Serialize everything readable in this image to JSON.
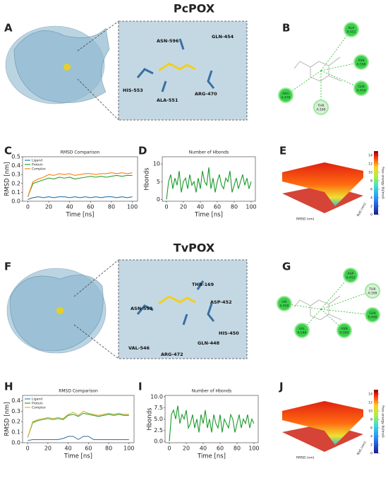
{
  "sections": [
    {
      "title": "PcPOX"
    },
    {
      "title": "TvPOX"
    }
  ],
  "panels": {
    "A": {
      "label": "A",
      "residues": [
        "ASN-596",
        "GLN-454",
        "HIS-553",
        "ALA-551",
        "ARG-470"
      ]
    },
    "B": {
      "label": "B",
      "residues": [
        {
          "name": "ALA",
          "id": "A:551"
        },
        {
          "name": "ASN",
          "id": "A:596"
        },
        {
          "name": "GLN",
          "id": "A:454"
        },
        {
          "name": "ARG",
          "id": "A:470"
        },
        {
          "name": "THR",
          "id": "A:160"
        }
      ]
    },
    "C": {
      "label": "C"
    },
    "D": {
      "label": "D"
    },
    "E": {
      "label": "E",
      "x_label": "RMSD (nm)",
      "y_label": "RoG (nm)",
      "colorbar": {
        "label": "Free energy (kJ/mol)",
        "lim": [
          0,
          15
        ],
        "ticks": [
          0,
          2,
          4,
          6,
          8,
          10,
          12,
          14
        ]
      }
    },
    "F": {
      "label": "F",
      "residues": [
        "THR-169",
        "ASN-593",
        "ASP-452",
        "HIS-450",
        "GLN-448",
        "VAL-546",
        "ARG-472"
      ]
    },
    "G": {
      "label": "G",
      "residues": [
        {
          "name": "ASP",
          "id": "A:452"
        },
        {
          "name": "THR",
          "id": "A:169"
        },
        {
          "name": "GLN",
          "id": "A:448"
        },
        {
          "name": "HIS",
          "id": "A:450"
        },
        {
          "name": "VAL",
          "id": "A:546"
        },
        {
          "name": "ASN",
          "id": "A:593"
        }
      ]
    },
    "H": {
      "label": "H"
    },
    "I": {
      "label": "I"
    },
    "J": {
      "label": "J",
      "x_label": "RMSD (nm)",
      "y_label": "RoG (nm)",
      "colorbar": {
        "label": "Free energy (kJ/mol)",
        "lim": [
          0,
          15
        ],
        "ticks": [
          0,
          2,
          4,
          6,
          8,
          10,
          12,
          14
        ]
      }
    }
  },
  "chart_data": [
    {
      "type": "line",
      "title": "RMSD Comparison",
      "x_label": "Time [ns]",
      "y_label": "RMSD [nm]",
      "x": [
        0,
        5,
        10,
        15,
        20,
        25,
        30,
        35,
        40,
        45,
        50,
        55,
        60,
        65,
        70,
        75,
        80,
        85,
        90,
        95,
        100
      ],
      "xlim": [
        -5,
        105
      ],
      "xticks": [
        0,
        20,
        40,
        60,
        80,
        100
      ],
      "ylim": [
        0,
        0.5
      ],
      "yticks": [
        {
          "value": 0,
          "label": "0.0"
        },
        0.1,
        0.2,
        0.3,
        0.4,
        0.5
      ],
      "series": [
        {
          "name": "Ligand",
          "color": "#1f77b4",
          "values": [
            0.02,
            0.04,
            0.05,
            0.04,
            0.05,
            0.04,
            0.05,
            0.05,
            0.04,
            0.05,
            0.04,
            0.05,
            0.04,
            0.05,
            0.04,
            0.05,
            0.05,
            0.04,
            0.05,
            0.04,
            0.05
          ]
        },
        {
          "name": "Protein",
          "color": "#2ca02c",
          "values": [
            0.05,
            0.2,
            0.22,
            0.24,
            0.26,
            0.25,
            0.27,
            0.26,
            0.27,
            0.25,
            0.26,
            0.27,
            0.28,
            0.27,
            0.28,
            0.27,
            0.28,
            0.29,
            0.28,
            0.29,
            0.29
          ]
        },
        {
          "name": "Complex",
          "color": "#ff7f0e",
          "values": [
            0.05,
            0.22,
            0.25,
            0.27,
            0.3,
            0.29,
            0.31,
            0.3,
            0.31,
            0.29,
            0.3,
            0.31,
            0.31,
            0.3,
            0.31,
            0.31,
            0.32,
            0.31,
            0.32,
            0.31,
            0.32
          ]
        }
      ]
    },
    {
      "type": "line",
      "title": "Number of Hbonds",
      "x_label": "Time [ns]",
      "y_label": "Hbonds",
      "x": [
        0,
        2.5,
        5,
        7.5,
        10,
        12.5,
        15,
        17.5,
        20,
        22.5,
        25,
        27.5,
        30,
        32.5,
        35,
        37.5,
        40,
        42.5,
        45,
        47.5,
        50,
        52.5,
        55,
        57.5,
        60,
        62.5,
        65,
        67.5,
        70,
        72.5,
        75,
        77.5,
        80,
        82.5,
        85,
        87.5,
        90,
        92.5,
        95,
        97.5,
        100
      ],
      "xlim": [
        -5,
        105
      ],
      "xticks": [
        0,
        20,
        40,
        60,
        80,
        100
      ],
      "ylim": [
        -0.5,
        12
      ],
      "yticks": [
        0,
        5,
        10
      ],
      "series": [
        {
          "name": "Hbonds",
          "color": "#1a9a2a",
          "values": [
            0,
            5,
            7,
            3,
            6,
            4,
            8,
            2,
            5,
            6,
            3,
            7,
            4,
            5,
            2,
            6,
            3,
            8,
            5,
            4,
            9,
            3,
            6,
            2,
            5,
            7,
            4,
            3,
            6,
            5,
            8,
            2,
            4,
            6,
            3,
            5,
            7,
            4,
            6,
            3,
            5
          ]
        }
      ]
    },
    {
      "type": "line",
      "title": "RMSD Comparison",
      "x_label": "Time [ns]",
      "y_label": "RMSD [nm]",
      "x": [
        0,
        5,
        10,
        15,
        20,
        25,
        30,
        35,
        40,
        45,
        50,
        55,
        60,
        65,
        70,
        75,
        80,
        85,
        90,
        95,
        100
      ],
      "xlim": [
        -5,
        105
      ],
      "xticks": [
        0,
        20,
        40,
        60,
        80,
        100
      ],
      "ylim": [
        0,
        0.45
      ],
      "yticks": [
        {
          "value": 0,
          "label": "0.0"
        },
        0.1,
        0.2,
        0.3,
        0.4
      ],
      "series": [
        {
          "name": "Ligand",
          "color": "#4878a8",
          "values": [
            0.02,
            0.03,
            0.03,
            0.03,
            0.03,
            0.03,
            0.03,
            0.04,
            0.06,
            0.06,
            0.03,
            0.06,
            0.06,
            0.03,
            0.03,
            0.03,
            0.03,
            0.03,
            0.03,
            0.03,
            0.03
          ]
        },
        {
          "name": "Protein",
          "color": "#3a9a3a",
          "values": [
            0.05,
            0.19,
            0.21,
            0.22,
            0.23,
            0.22,
            0.23,
            0.22,
            0.26,
            0.27,
            0.25,
            0.28,
            0.27,
            0.26,
            0.25,
            0.26,
            0.27,
            0.26,
            0.27,
            0.26,
            0.26
          ]
        },
        {
          "name": "Complex",
          "color": "#d4b830",
          "values": [
            0.05,
            0.2,
            0.22,
            0.23,
            0.24,
            0.23,
            0.24,
            0.23,
            0.27,
            0.29,
            0.26,
            0.3,
            0.28,
            0.27,
            0.26,
            0.27,
            0.28,
            0.27,
            0.28,
            0.27,
            0.27
          ]
        }
      ]
    },
    {
      "type": "line",
      "title": "Number of Hbonds",
      "x_label": "Time [ns]",
      "y_label": "Hbonds",
      "x": [
        0,
        2.5,
        5,
        7.5,
        10,
        12.5,
        15,
        17.5,
        20,
        22.5,
        25,
        27.5,
        30,
        32.5,
        35,
        37.5,
        40,
        42.5,
        45,
        47.5,
        50,
        52.5,
        55,
        57.5,
        60,
        62.5,
        65,
        67.5,
        70,
        72.5,
        75,
        77.5,
        80,
        82.5,
        85,
        87.5,
        90,
        92.5,
        95,
        97.5,
        100
      ],
      "xlim": [
        -5,
        105
      ],
      "xticks": [
        0,
        20,
        40,
        60,
        80,
        100
      ],
      "ylim": [
        -0.3,
        10.3
      ],
      "yticks": [
        {
          "value": 0,
          "label": "0.0"
        },
        2.5,
        {
          "value": 5,
          "label": "5.0"
        },
        7.5,
        {
          "value": 10,
          "label": "10.0"
        }
      ],
      "series": [
        {
          "name": "Hbonds",
          "color": "#1a9a2a",
          "values": [
            0,
            6,
            7,
            5,
            8,
            4,
            6,
            5,
            7,
            3,
            4,
            6,
            3,
            5,
            2,
            6,
            4,
            7,
            3,
            5,
            2,
            6,
            4,
            3,
            6,
            2,
            5,
            4,
            3,
            6,
            5,
            2,
            4,
            6,
            3,
            5,
            4,
            6,
            3,
            5,
            4
          ]
        }
      ]
    }
  ]
}
